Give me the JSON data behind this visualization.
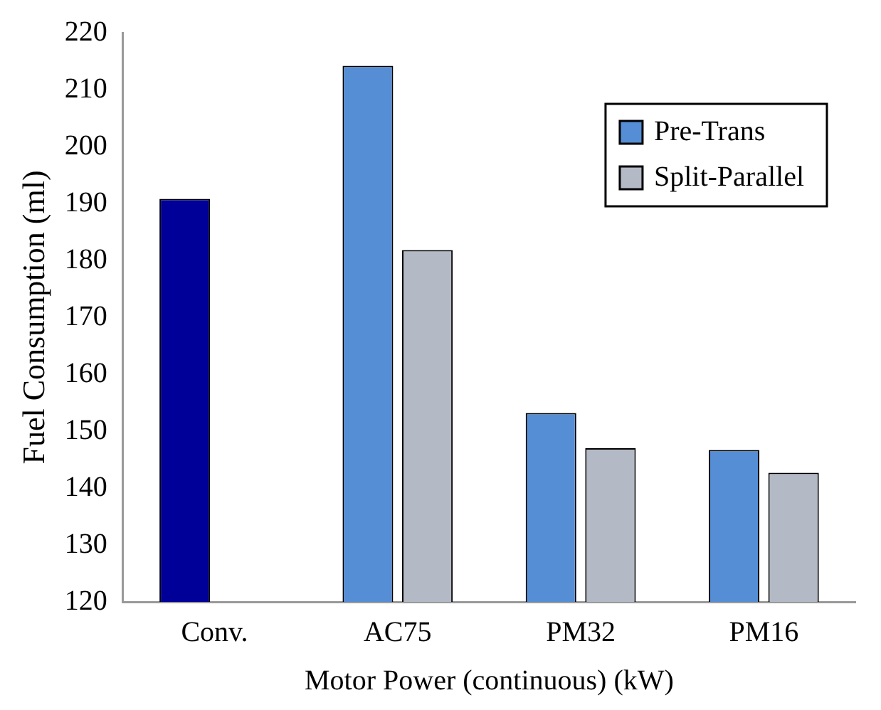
{
  "chart_data": {
    "type": "bar",
    "xlabel": "Motor Power (continuous) (kW)",
    "ylabel": "Fuel Consumption (ml)",
    "categories": [
      "Conv.",
      "AC75",
      "PM32",
      "PM16"
    ],
    "series": [
      {
        "name": "Pre-Trans",
        "color": "#558ed5",
        "colors": [
          "#000099",
          "#558ed5",
          "#558ed5",
          "#558ed5"
        ],
        "values": [
          190.8,
          214.2,
          153.2,
          146.7
        ]
      },
      {
        "name": "Split-Parallel",
        "color": "#b4b9c6",
        "values": [
          null,
          181.8,
          147.0,
          142.7
        ]
      }
    ],
    "ylim": [
      120,
      220
    ],
    "yticks": [
      120,
      130,
      140,
      150,
      160,
      170,
      180,
      190,
      200,
      210,
      220
    ],
    "grid": false,
    "legend": "top right"
  }
}
